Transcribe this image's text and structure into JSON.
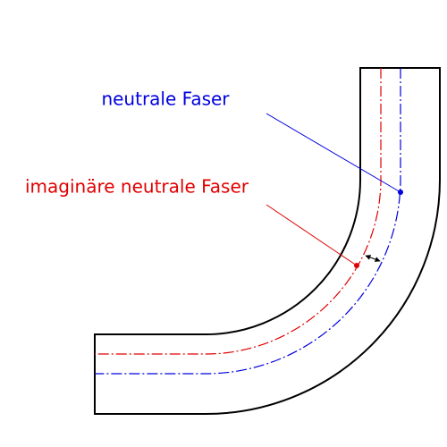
{
  "labels": {
    "neutral_fiber": "neutrale Faser",
    "imaginary_neutral_fiber": "imaginäre neutrale Faser"
  }
}
